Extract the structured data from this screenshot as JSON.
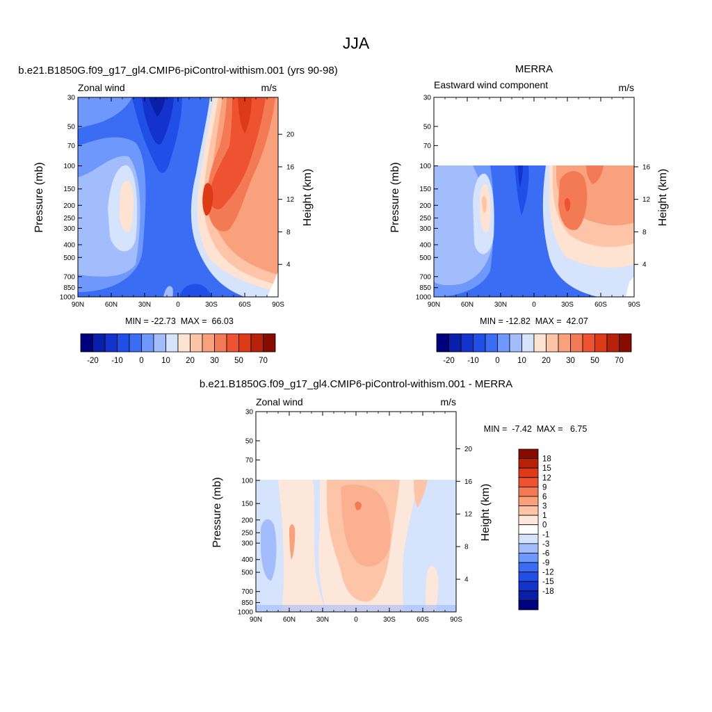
{
  "figure_title": "JJA",
  "colors": {
    "full_scale": [
      "#00007f",
      "#0a1fa8",
      "#1433cc",
      "#1f4fe6",
      "#3a6cf4",
      "#6e98fb",
      "#a3bcfb",
      "#d5e3fd",
      "#fee3d2",
      "#fdc4a8",
      "#f9a07d",
      "#f47a56",
      "#ee5230",
      "#dd3a17",
      "#b52109",
      "#870b00"
    ],
    "diff_scale": [
      "#00007f",
      "#0a1fa8",
      "#1433cc",
      "#1f4fe6",
      "#3a6cf4",
      "#6e98fb",
      "#a3bcfb",
      "#d5e3fd",
      "#ffffff",
      "#fde7db",
      "#fdc4a8",
      "#f9a07d",
      "#f47a56",
      "#ee5230",
      "#dd3a17",
      "#b52109",
      "#870b00"
    ]
  },
  "shared_axes": {
    "x_ticks": [
      "90N",
      "60N",
      "30N",
      "0",
      "30S",
      "60S",
      "90S"
    ],
    "x_ticks_diff": [
      "90N",
      "60N",
      "30N",
      "0",
      "30S",
      "60S",
      "90S"
    ],
    "p_ticks": [
      "30",
      "50",
      "70",
      "100",
      "150",
      "200",
      "250",
      "300",
      "400",
      "500",
      "700",
      "850",
      "1000"
    ],
    "pressure_label": "Pressure (mb)",
    "height_label": "Height (km)",
    "height_ticks_top": [
      "20",
      "16",
      "12",
      "8",
      "4"
    ],
    "height_ticks_mid": [
      "16",
      "12",
      "8",
      "4"
    ]
  },
  "chart_data": [
    {
      "type": "heatmap",
      "title": "b.e21.B1850G.f09_g17_gl4.CMIP6-piControl-withism.001 (yrs 90-98)",
      "left_string": "Zonal wind",
      "right_string": "m/s",
      "ylabel": "Pressure (mb)",
      "y2label": "Height (km)",
      "ylim": [
        1000,
        30
      ],
      "min": "-22.73",
      "max": "66.03",
      "stats": "MIN = -22.73  MAX =  66.03",
      "colorbar_levels": [
        "-25",
        "-20",
        "-15",
        "-10",
        "-5",
        "0",
        "5",
        "10",
        "15",
        "20",
        "25",
        "30",
        "40",
        "50",
        "60",
        "70"
      ],
      "colorbar_labels": [
        "-20",
        "-10",
        "0",
        "10",
        "20",
        "30",
        "50",
        "70"
      ]
    },
    {
      "type": "heatmap",
      "title": "MERRA",
      "left_string": "Eastward wind component",
      "right_string": "m/s",
      "ylabel": "Pressure (mb)",
      "y2label": "Height (km)",
      "ylim": [
        1000,
        30
      ],
      "min": "-12.82",
      "max": "42.07",
      "stats": "MIN = -12.82  MAX =  42.07",
      "colorbar_labels": [
        "-20",
        "-10",
        "0",
        "10",
        "20",
        "30",
        "50",
        "70"
      ]
    },
    {
      "type": "heatmap",
      "title": "b.e21.B1850G.f09_g17_gl4.CMIP6-piControl-withism.001 - MERRA",
      "left_string": "Zonal wind",
      "right_string": "m/s",
      "ylabel": "Pressure (mb)",
      "y2label": "Height (km)",
      "ylim": [
        1000,
        30
      ],
      "min": "-7.42",
      "max": "6.75",
      "stats": "MIN =  -7.42  MAX =   6.75",
      "colorbar_labels": [
        "18",
        "15",
        "12",
        "9",
        "6",
        "3",
        "1",
        "0",
        "-1",
        "-3",
        "-6",
        "-9",
        "-12",
        "-15",
        "-18"
      ]
    }
  ]
}
